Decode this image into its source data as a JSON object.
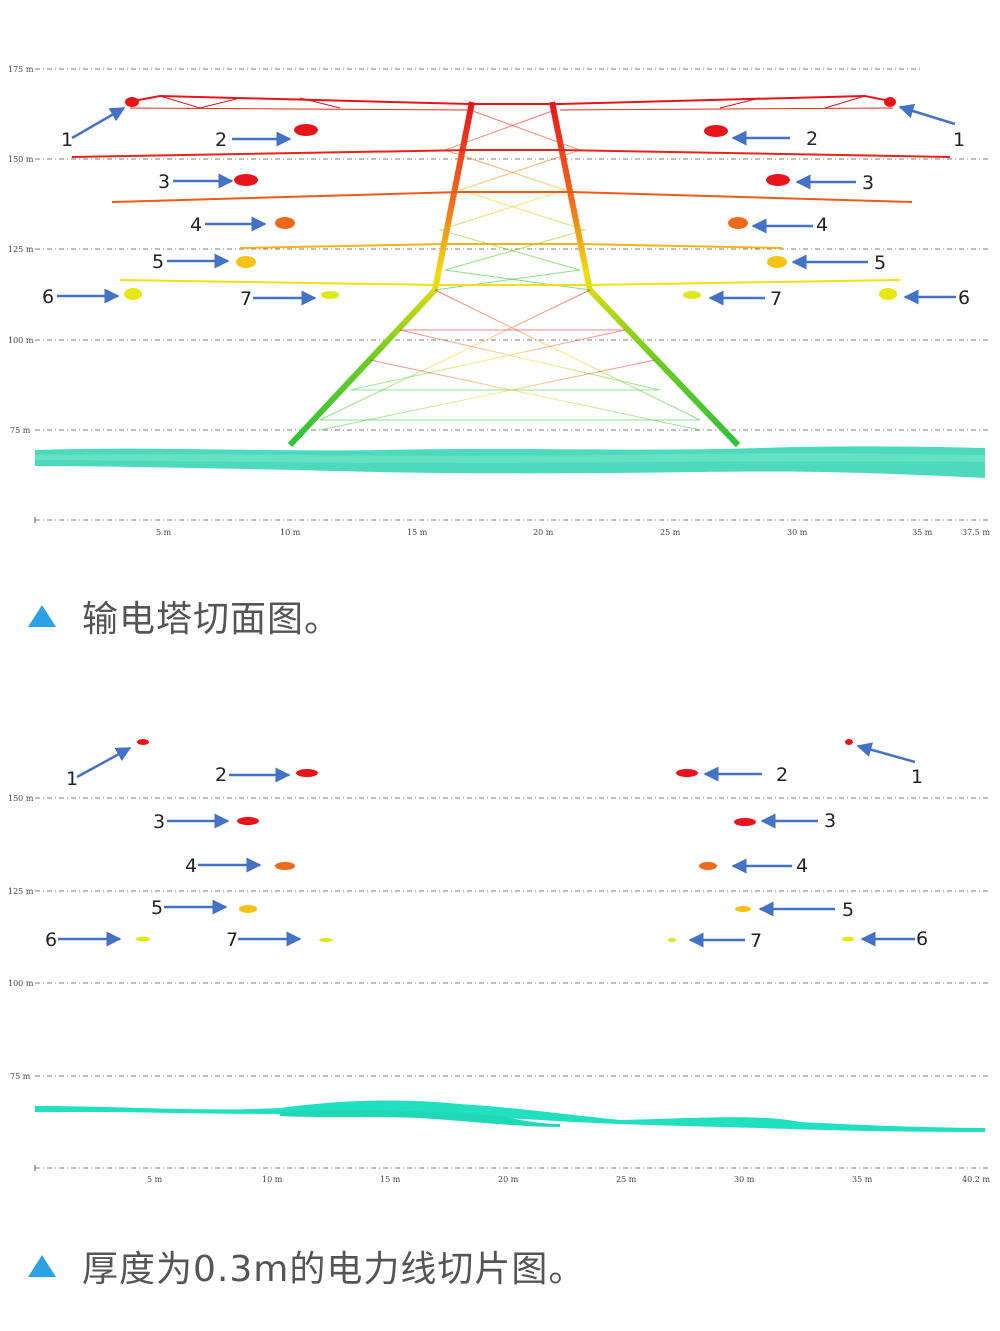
{
  "colors": {
    "arrow": "#4472c4",
    "caption_triangle": "#2aa3e6",
    "caption_text": "#555555"
  },
  "panel1": {
    "y_ticks": [
      "175 m",
      "150 m",
      "125 m",
      "100 m",
      "75 m"
    ],
    "x_ticks": [
      "5 m",
      "10 m",
      "15 m",
      "20 m",
      "25 m",
      "30 m",
      "35 m",
      "37.5 m"
    ],
    "labels": [
      "1",
      "2",
      "3",
      "4",
      "5",
      "6",
      "7",
      "7",
      "6",
      "5",
      "4",
      "3",
      "2",
      "1"
    ]
  },
  "caption1": "输电塔切面图。",
  "panel2": {
    "y_ticks": [
      "150 m",
      "125 m",
      "100 m",
      "75 m"
    ],
    "x_ticks": [
      "5 m",
      "10 m",
      "15 m",
      "20 m",
      "25 m",
      "30 m",
      "35 m",
      "40.2 m"
    ],
    "labels": [
      "1",
      "2",
      "3",
      "4",
      "5",
      "6",
      "7",
      "7",
      "6",
      "5",
      "4",
      "3",
      "2",
      "1"
    ]
  },
  "caption2": "厚度为0.3m的电力线切片图。"
}
